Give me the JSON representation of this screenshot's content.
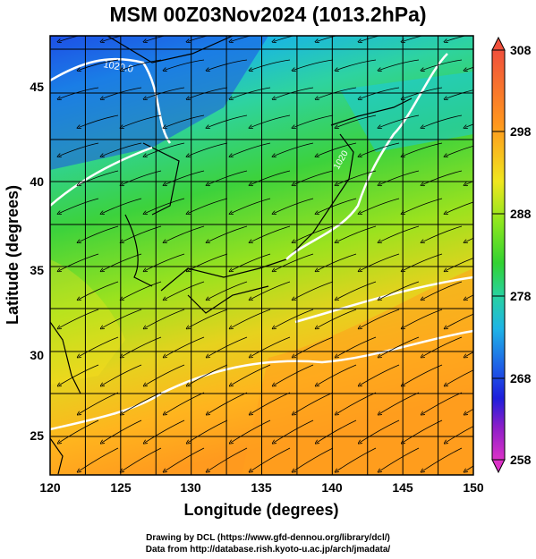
{
  "title": "MSM 00Z03Nov2024 (1013.2hPa)",
  "xaxis": {
    "label": "Longitude (degrees)",
    "ticks": [
      "120",
      "125",
      "130",
      "135",
      "140",
      "145",
      "150"
    ]
  },
  "yaxis": {
    "label": "Latitude  (degrees)",
    "ticks": [
      "25",
      "30",
      "35",
      "40",
      "45"
    ]
  },
  "colorbar": {
    "ticks": [
      "308",
      "298",
      "288",
      "278",
      "268",
      "258"
    ],
    "min": 258,
    "max": 308
  },
  "contours": [
    "1020.0",
    "1020"
  ],
  "credits": {
    "line1": "Drawing by DCL (https://www.gfd-dennou.org/library/dcl/)",
    "line2": "Data from http://database.rish.kyoto-u.ac.jp/arch/jmadata/"
  },
  "colors": {
    "cold": "#1e5ae0",
    "mid": "#3cd23c",
    "warm": "#ffa01e",
    "land_outline": "#000000",
    "isobar": "#ffffff"
  }
}
